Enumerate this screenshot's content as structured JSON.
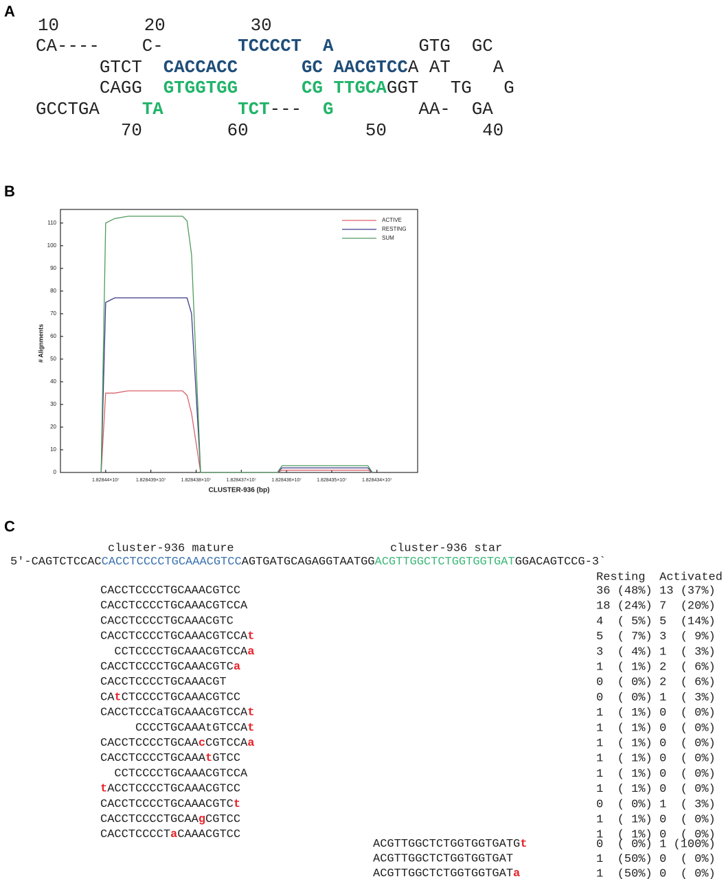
{
  "panel_a": {
    "label": "A",
    "top_numbers": "10        20        30",
    "rows": [
      {
        "segments": [
          {
            "text": "CA----    C-       "
          },
          {
            "text": "TCCCCT",
            "color": "#1f4e79",
            "bold": true
          },
          {
            "text": "  "
          },
          {
            "text": "A",
            "color": "#1f4e79",
            "bold": true
          },
          {
            "text": "        GTG  GC"
          }
        ]
      },
      {
        "segments": [
          {
            "text": "      GTCT  "
          },
          {
            "text": "CACCACC",
            "color": "#1f4e79",
            "bold": true
          },
          {
            "text": "      "
          },
          {
            "text": "GC",
            "color": "#1f4e79",
            "bold": true
          },
          {
            "text": " "
          },
          {
            "text": "AACGTCC",
            "color": "#1f4e79",
            "bold": true
          },
          {
            "text": "A AT    A"
          }
        ]
      },
      {
        "segments": [
          {
            "text": "      CAGG  "
          },
          {
            "text": "GTGGTGG",
            "color": "#22b46a",
            "bold": true
          },
          {
            "text": "      "
          },
          {
            "text": "CG",
            "color": "#22b46a",
            "bold": true
          },
          {
            "text": " "
          },
          {
            "text": "TTGCA",
            "color": "#22b46a",
            "bold": true
          },
          {
            "text": "GGT   TG   G"
          }
        ]
      },
      {
        "segments": [
          {
            "text": "GCCTGA    "
          },
          {
            "text": "TA",
            "color": "#22b46a",
            "bold": true
          },
          {
            "text": "       "
          },
          {
            "text": "TCT",
            "color": "#22b46a",
            "bold": true
          },
          {
            "text": "---  "
          },
          {
            "text": "G",
            "color": "#22b46a",
            "bold": true
          },
          {
            "text": "        AA-  GA"
          }
        ]
      }
    ],
    "bottom_numbers": "        70        60           50         40"
  },
  "chart_data": {
    "type": "line",
    "panel_label": "B",
    "x_label": "CLUSTER-936 (bp)",
    "y_label": "# Alignments",
    "x": [
      18284401,
      18284400,
      18284398,
      18284395,
      18284383,
      18284382,
      18284381,
      18284379,
      18284362,
      18284361,
      18284342,
      18284341
    ],
    "series": [
      {
        "name": "ACTIVE",
        "color": "#d9606a",
        "values": [
          0,
          35,
          35,
          36,
          36,
          34,
          26,
          0,
          0,
          1,
          1,
          0
        ]
      },
      {
        "name": "RESTING",
        "color": "#3b3b8a",
        "values": [
          0,
          75,
          77,
          77,
          77,
          77,
          70,
          0,
          0,
          2,
          2,
          0
        ]
      },
      {
        "name": "SUM",
        "color": "#4f9a5c",
        "values": [
          0,
          110,
          112,
          113,
          113,
          111,
          96,
          0,
          0,
          3,
          3,
          0
        ]
      }
    ],
    "xlim": [
      18284410,
      18284331
    ],
    "xticks": [
      {
        "value": 18284400,
        "label": "1.82844×10⁷"
      },
      {
        "value": 18284390,
        "label": "1.828439×10⁷"
      },
      {
        "value": 18284380,
        "label": "1.828438×10⁷"
      },
      {
        "value": 18284370,
        "label": "1.828437×10⁷"
      },
      {
        "value": 18284360,
        "label": "1.828436×10⁷"
      },
      {
        "value": 18284350,
        "label": "1.828435×10⁷"
      },
      {
        "value": 18284340,
        "label": "1.828434×10⁷"
      }
    ],
    "ylim": [
      0,
      116
    ],
    "yticks": [
      0,
      10,
      20,
      30,
      40,
      50,
      60,
      70,
      80,
      90,
      100,
      110
    ],
    "legend": "upper-right"
  },
  "panel_c": {
    "label": "C",
    "mature_label": "cluster-936 mature",
    "star_label": "cluster-936 star",
    "precursor": [
      {
        "text": "5'-CAGTCTCCAC"
      },
      {
        "text": "CACCTCCCCTGCAAACGTCC",
        "color": "#3a72b0"
      },
      {
        "text": "AGTGATGCAGAGGTAATGG"
      },
      {
        "text": "ACGTTGGCTCTGGTGGTGAT",
        "color": "#3cb878"
      },
      {
        "text": "GGACAGTCCG-3`"
      }
    ],
    "headers": [
      "Resting",
      "Activated"
    ],
    "mature_reads": [
      {
        "segments": [
          {
            "text": "CACCTCCCCTGCAAACGTCC"
          }
        ],
        "resting": "36 (48%)",
        "activated": "13 (37%)"
      },
      {
        "segments": [
          {
            "text": "CACCTCCCCTGCAAACGTCCA"
          }
        ],
        "resting": "18 (24%)",
        "activated": "7  (20%)"
      },
      {
        "segments": [
          {
            "text": "CACCTCCCCTGCAAACGTC"
          }
        ],
        "resting": "4  ( 5%)",
        "activated": "5  (14%)"
      },
      {
        "segments": [
          {
            "text": "CACCTCCCCTGCAAACGTCCA"
          },
          {
            "text": "t",
            "color": "#e8232a",
            "bold": true
          }
        ],
        "resting": "5  ( 7%)",
        "activated": "3  ( 9%)"
      },
      {
        "segments": [
          {
            "text": "  CCTCCCCTGCAAACGTCCA"
          },
          {
            "text": "a",
            "color": "#e8232a",
            "bold": true
          }
        ],
        "resting": "3  ( 4%)",
        "activated": "1  ( 3%)"
      },
      {
        "segments": [
          {
            "text": "CACCTCCCCTGCAAACGTC"
          },
          {
            "text": "a",
            "color": "#e8232a",
            "bold": true
          }
        ],
        "resting": "1  ( 1%)",
        "activated": "2  ( 6%)"
      },
      {
        "segments": [
          {
            "text": "CACCTCCCCTGCAAACGT"
          }
        ],
        "resting": "0  ( 0%)",
        "activated": "2  ( 6%)"
      },
      {
        "segments": [
          {
            "text": "CA"
          },
          {
            "text": "t",
            "color": "#e8232a",
            "bold": true
          },
          {
            "text": "CTCCCCTGCAAACGTCC"
          }
        ],
        "resting": "0  ( 0%)",
        "activated": "1  ( 3%)"
      },
      {
        "segments": [
          {
            "text": "CACCTCCCaTGCAAACGTCCA"
          },
          {
            "text": "t",
            "color": "#e8232a",
            "bold": true
          }
        ],
        "resting": "1  ( 1%)",
        "activated": "0  ( 0%)"
      },
      {
        "segments": [
          {
            "text": "     CCCCTGCAAAtGTCCA"
          },
          {
            "text": "t",
            "color": "#e8232a",
            "bold": true
          }
        ],
        "resting": "1  ( 1%)",
        "activated": "0  ( 0%)"
      },
      {
        "segments": [
          {
            "text": "CACCTCCCCTGCAA"
          },
          {
            "text": "c",
            "color": "#e8232a",
            "bold": true
          },
          {
            "text": "CGTCCA"
          },
          {
            "text": "a",
            "color": "#e8232a",
            "bold": true
          }
        ],
        "resting": "1  ( 1%)",
        "activated": "0  ( 0%)"
      },
      {
        "segments": [
          {
            "text": "CACCTCCCCTGCAAA"
          },
          {
            "text": "t",
            "color": "#e8232a",
            "bold": true
          },
          {
            "text": "GTCC"
          }
        ],
        "resting": "1  ( 1%)",
        "activated": "0  ( 0%)"
      },
      {
        "segments": [
          {
            "text": "  CCTCCCCTGCAAACGTCCA"
          }
        ],
        "resting": "1  ( 1%)",
        "activated": "0  ( 0%)"
      },
      {
        "segments": [
          {
            "text": "t",
            "color": "#e8232a",
            "bold": true
          },
          {
            "text": "ACCTCCCCTGCAAACGTCC"
          }
        ],
        "resting": "1  ( 1%)",
        "activated": "0  ( 0%)"
      },
      {
        "segments": [
          {
            "text": "CACCTCCCCTGCAAACGTC"
          },
          {
            "text": "t",
            "color": "#e8232a",
            "bold": true
          }
        ],
        "resting": "0  ( 0%)",
        "activated": "1  ( 3%)"
      },
      {
        "segments": [
          {
            "text": "CACCTCCCCTGCAA"
          },
          {
            "text": "g",
            "color": "#e8232a",
            "bold": true
          },
          {
            "text": "CGTCC"
          }
        ],
        "resting": "1  ( 1%)",
        "activated": "0  ( 0%)"
      },
      {
        "segments": [
          {
            "text": "CACCTCCCCT"
          },
          {
            "text": "a",
            "color": "#e8232a",
            "bold": true
          },
          {
            "text": "CAAACGTCC"
          }
        ],
        "resting": "1  ( 1%)",
        "activated": "0  ( 0%)"
      }
    ],
    "star_reads": [
      {
        "segments": [
          {
            "text": "ACGTTGGCTCTGGTGGTGATG"
          },
          {
            "text": "t",
            "color": "#e8232a",
            "bold": true
          }
        ],
        "resting": "0  ( 0%)",
        "activated": "1 (100%)"
      },
      {
        "segments": [
          {
            "text": "ACGTTGGCTCTGGTGGTGAT"
          }
        ],
        "resting": "1  (50%)",
        "activated": "0  ( 0%)"
      },
      {
        "segments": [
          {
            "text": "ACGTTGGCTCTGGTGGTGAT"
          },
          {
            "text": "a",
            "color": "#e8232a",
            "bold": true
          }
        ],
        "resting": "1  (50%)",
        "activated": "0  ( 0%)"
      }
    ]
  }
}
